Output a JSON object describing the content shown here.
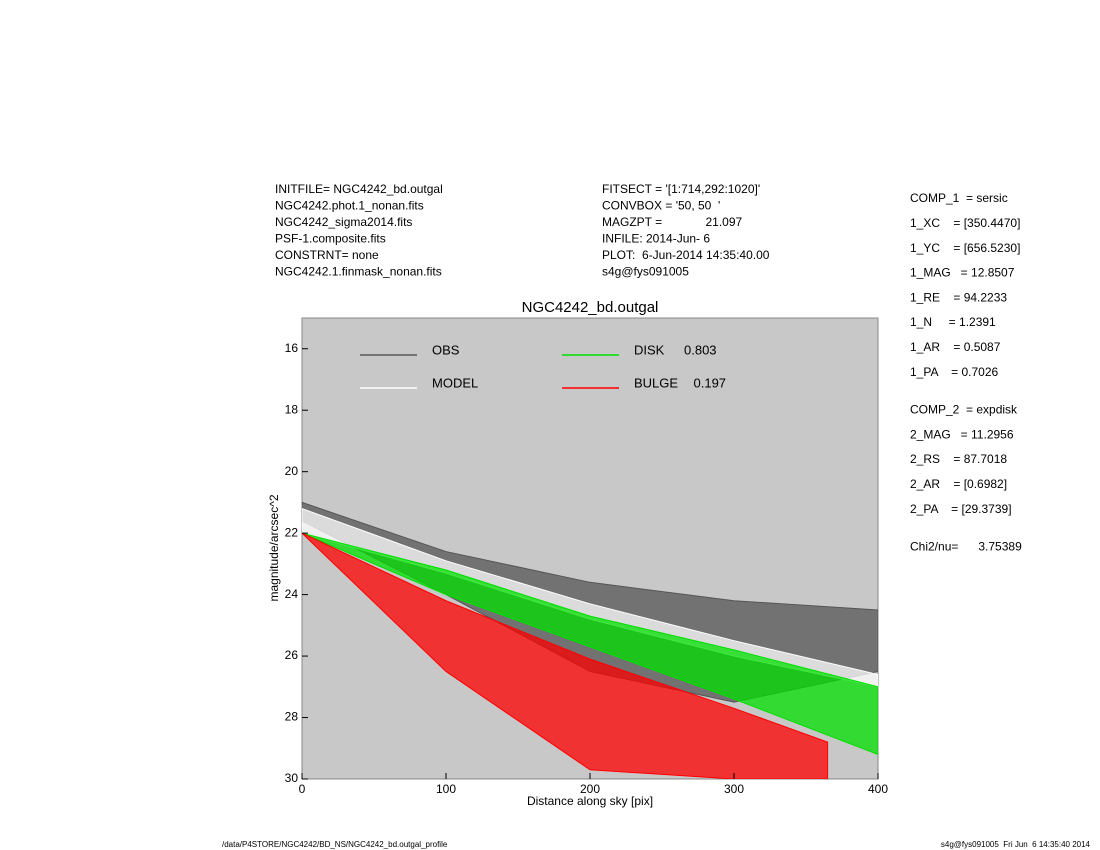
{
  "chart_data": {
    "type": "band",
    "title": "NGC4242_bd.outgal",
    "xlabel": "Distance along sky [pix]",
    "ylabel": "magnitude/arcsec^2",
    "xlim": [
      0,
      400
    ],
    "xticks": [
      0,
      100,
      200,
      300,
      400
    ],
    "ylim": [
      15,
      30
    ],
    "yticks": [
      16,
      18,
      20,
      22,
      24,
      26,
      28,
      30
    ],
    "y_inverted": true,
    "background": "#c8c8c8",
    "series": [
      {
        "name": "OBS",
        "color": "#555555",
        "x": [
          0,
          100,
          200,
          300,
          400
        ],
        "values": [
          21.0,
          22.6,
          23.6,
          24.2,
          24.5
        ],
        "low": [
          21.6,
          24.0,
          26.5,
          27.5,
          26.5
        ]
      },
      {
        "name": "MODEL",
        "color": "#ffffff",
        "x": [
          0,
          100,
          200,
          300,
          400
        ],
        "values": [
          21.2,
          22.9,
          24.3,
          25.5,
          26.6
        ],
        "low": [
          22.0,
          23.3,
          24.8,
          26.0,
          27.0
        ]
      },
      {
        "name": "DISK",
        "fraction": 0.803,
        "color": "#00e000",
        "x": [
          0,
          100,
          200,
          300,
          400
        ],
        "values": [
          22.0,
          23.2,
          24.7,
          25.8,
          27.0
        ],
        "low": [
          22.0,
          24.0,
          25.7,
          27.4,
          29.2
        ]
      },
      {
        "name": "BULGE",
        "fraction": 0.197,
        "color": "#ff0000",
        "x": [
          0,
          100,
          200,
          300,
          365
        ],
        "values": [
          22.0,
          24.2,
          26.1,
          27.7,
          28.8
        ],
        "low": [
          22.0,
          26.5,
          29.7,
          30.0,
          30.0
        ]
      }
    ],
    "info_left": [
      "INITFILE= NGC4242_bd.outgal",
      "NGC4242.phot.1_nonan.fits",
      "NGC4242_sigma2014.fits",
      "PSF-1.composite.fits",
      "CONSTRNT= none",
      "NGC4242.1.finmask_nonan.fits"
    ],
    "info_middle": [
      "FITSECT = '[1:714,292:1020]'",
      "CONVBOX = '50, 50  '",
      "MAGZPT =             21.097",
      "INFILE: 2014-Jun- 6",
      "PLOT:  6-Jun-2014 14:35:40.00",
      "s4g@fys091005"
    ],
    "info_right": [
      [
        "COMP_1  = sersic",
        "1_XC    = [350.4470]",
        "1_YC    = [656.5230]",
        "1_MAG   = 12.8507",
        "1_RE    = 94.2233",
        "1_N     = 1.2391",
        "1_AR    = 0.5087",
        "1_PA    = 0.7026"
      ],
      [
        "COMP_2  = expdisk",
        "2_MAG   = 11.2956",
        "2_RS    = 87.7018",
        "2_AR    = [0.6982]",
        "2_PA    = [29.3739]"
      ],
      [
        "Chi2/nu=      3.75389"
      ]
    ],
    "footer_left": "/data/P4STORE/NGC4242/BD_NS/NGC4242_bd.outgal_profile",
    "footer_right": "s4g@fys091005  Fri Jun  6 14:35:40 2014"
  }
}
